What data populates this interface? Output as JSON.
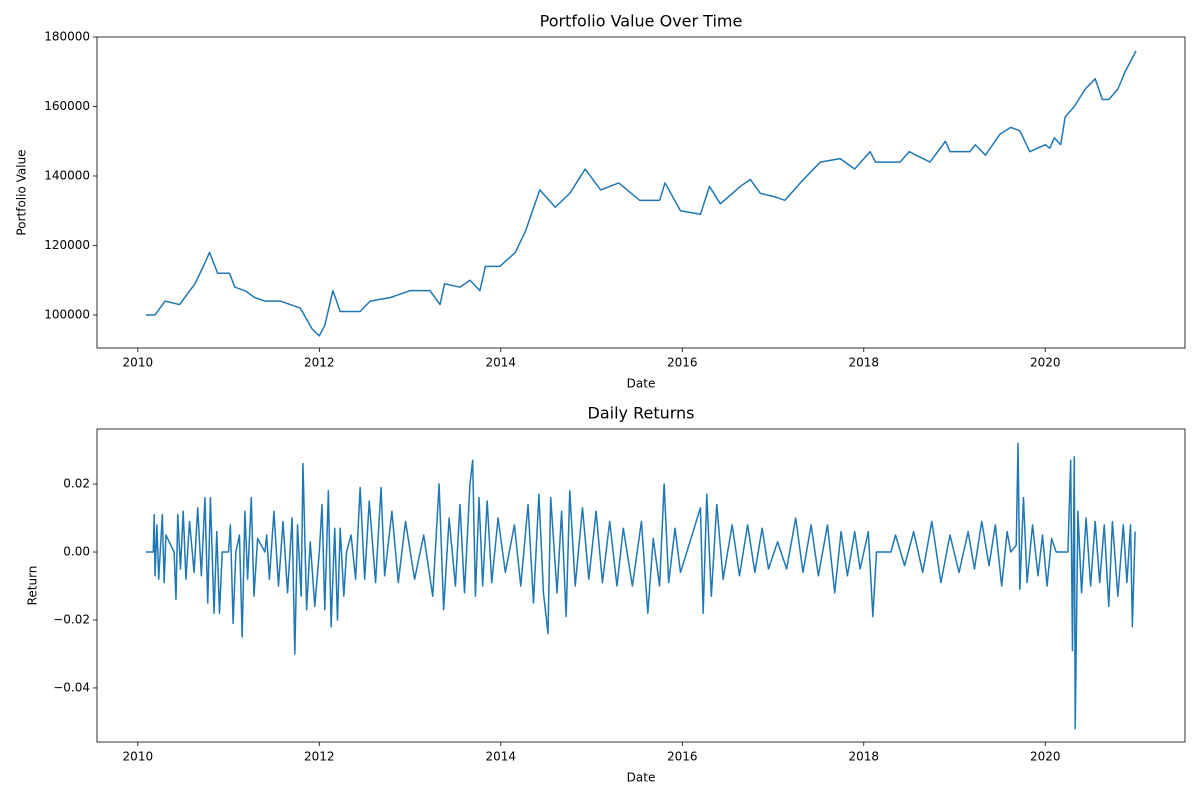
{
  "chart_data": [
    {
      "type": "line",
      "title": "Portfolio Value Over Time",
      "xlabel": "Date",
      "ylabel": "Portfolio Value",
      "xlim": [
        2009.55,
        2021.54
      ],
      "xticks": [
        2010,
        2012,
        2014,
        2016,
        2018,
        2020
      ],
      "ylim": [
        90500,
        180000
      ],
      "yticks": [
        100000,
        120000,
        140000,
        160000,
        180000
      ],
      "x": [
        2010.09,
        2010.19,
        2010.3,
        2010.46,
        2010.63,
        2010.74,
        2010.79,
        2010.88,
        2011.01,
        2011.07,
        2011.18,
        2011.29,
        2011.4,
        2011.57,
        2011.79,
        2011.92,
        2012.0,
        2012.06,
        2012.15,
        2012.23,
        2012.45,
        2012.56,
        2012.78,
        2013.0,
        2013.22,
        2013.33,
        2013.38,
        2013.55,
        2013.66,
        2013.77,
        2013.83,
        2013.99,
        2014.16,
        2014.27,
        2014.43,
        2014.6,
        2014.76,
        2014.93,
        2015.1,
        2015.3,
        2015.53,
        2015.75,
        2015.81,
        2015.98,
        2016.2,
        2016.3,
        2016.42,
        2016.64,
        2016.75,
        2016.86,
        2017.02,
        2017.13,
        2017.3,
        2017.52,
        2017.74,
        2017.9,
        2018.07,
        2018.13,
        2018.4,
        2018.5,
        2018.73,
        2018.9,
        2018.95,
        2019.17,
        2019.23,
        2019.34,
        2019.5,
        2019.62,
        2019.72,
        2019.83,
        2020.0,
        2020.05,
        2020.1,
        2020.17,
        2020.22,
        2020.32,
        2020.44,
        2020.55,
        2020.63,
        2020.7,
        2020.8,
        2020.88,
        2021.0
      ],
      "series": [
        {
          "name": "Portfolio",
          "color": "#1f77b4",
          "values": [
            100000,
            100000,
            104000,
            103000,
            109000,
            115000,
            118000,
            112000,
            112000,
            108000,
            107000,
            105000,
            104000,
            104000,
            102000,
            96000,
            94000,
            97000,
            107000,
            101000,
            101000,
            104000,
            105000,
            107000,
            107000,
            103000,
            109000,
            108000,
            110000,
            107000,
            114000,
            114000,
            118000,
            124000,
            136000,
            131000,
            135000,
            142000,
            136000,
            138000,
            133000,
            133000,
            138000,
            130000,
            129000,
            137000,
            132000,
            137000,
            139000,
            135000,
            134000,
            133000,
            138000,
            144000,
            145000,
            142000,
            147000,
            144000,
            144000,
            147000,
            144000,
            150000,
            147000,
            147000,
            149000,
            146000,
            152000,
            154000,
            153000,
            147000,
            149000,
            148000,
            151000,
            149000,
            157000,
            160000,
            165000,
            168000,
            162000,
            162000,
            165000,
            170000,
            176000
          ]
        }
      ]
    },
    {
      "type": "line",
      "title": "Daily Returns",
      "xlabel": "Date",
      "ylabel": "Return",
      "xlim": [
        2009.55,
        2021.54
      ],
      "xticks": [
        2010,
        2012,
        2014,
        2016,
        2018,
        2020
      ],
      "ylim": [
        -0.0559,
        0.0362
      ],
      "yticks": [
        {
          "value": -0.04,
          "label": "−0.04"
        },
        {
          "value": -0.02,
          "label": "−0.02"
        },
        {
          "value": 0,
          "label": "0.00"
        },
        0.02
      ],
      "x": [
        2010.09,
        2010.17,
        2010.18,
        2010.19,
        2010.21,
        2010.23,
        2010.27,
        2010.29,
        2010.31,
        2010.4,
        2010.42,
        2010.44,
        2010.47,
        2010.5,
        2010.53,
        2010.57,
        2010.62,
        2010.66,
        2010.7,
        2010.74,
        2010.77,
        2010.8,
        2010.84,
        2010.87,
        2010.9,
        2010.93,
        2011.0,
        2011.02,
        2011.05,
        2011.08,
        2011.12,
        2011.15,
        2011.18,
        2011.21,
        2011.25,
        2011.28,
        2011.32,
        2011.4,
        2011.42,
        2011.45,
        2011.5,
        2011.55,
        2011.6,
        2011.65,
        2011.7,
        2011.73,
        2011.76,
        2011.8,
        2011.82,
        2011.86,
        2011.9,
        2011.95,
        2012.0,
        2012.03,
        2012.06,
        2012.1,
        2012.13,
        2012.17,
        2012.2,
        2012.23,
        2012.27,
        2012.3,
        2012.35,
        2012.4,
        2012.45,
        2012.5,
        2012.55,
        2012.62,
        2012.68,
        2012.72,
        2012.8,
        2012.87,
        2012.95,
        2013.05,
        2013.15,
        2013.25,
        2013.32,
        2013.37,
        2013.43,
        2013.5,
        2013.55,
        2013.6,
        2013.66,
        2013.69,
        2013.72,
        2013.76,
        2013.8,
        2013.85,
        2013.9,
        2013.97,
        2014.05,
        2014.15,
        2014.22,
        2014.3,
        2014.36,
        2014.42,
        2014.47,
        2014.52,
        2014.55,
        2014.62,
        2014.67,
        2014.72,
        2014.76,
        2014.82,
        2014.9,
        2014.97,
        2015.05,
        2015.12,
        2015.2,
        2015.28,
        2015.35,
        2015.45,
        2015.55,
        2015.62,
        2015.68,
        2015.75,
        2015.8,
        2015.85,
        2015.92,
        2015.98,
        2016.05,
        2016.2,
        2016.23,
        2016.27,
        2016.32,
        2016.38,
        2016.45,
        2016.55,
        2016.63,
        2016.72,
        2016.8,
        2016.88,
        2016.95,
        2017.05,
        2017.15,
        2017.25,
        2017.33,
        2017.42,
        2017.5,
        2017.6,
        2017.68,
        2017.75,
        2017.82,
        2017.9,
        2017.96,
        2018.05,
        2018.1,
        2018.14,
        2018.3,
        2018.35,
        2018.45,
        2018.55,
        2018.65,
        2018.75,
        2018.85,
        2018.95,
        2019.05,
        2019.15,
        2019.22,
        2019.3,
        2019.38,
        2019.45,
        2019.52,
        2019.58,
        2019.62,
        2019.68,
        2019.7,
        2019.72,
        2019.76,
        2019.8,
        2019.86,
        2019.92,
        2019.97,
        2020.02,
        2020.07,
        2020.12,
        2020.25,
        2020.28,
        2020.3,
        2020.32,
        2020.33,
        2020.36,
        2020.4,
        2020.45,
        2020.5,
        2020.55,
        2020.6,
        2020.65,
        2020.7,
        2020.74,
        2020.8,
        2020.86,
        2020.9,
        2020.94,
        2020.96,
        2020.99
      ],
      "series": [
        {
          "name": "Return",
          "color": "#1f77b4",
          "values": [
            0,
            0,
            0.011,
            -0.007,
            0.008,
            -0.008,
            0.011,
            -0.009,
            0.005,
            0,
            -0.014,
            0.011,
            -0.005,
            0.012,
            -0.008,
            0.009,
            -0.006,
            0.013,
            -0.007,
            0.016,
            -0.015,
            0.016,
            -0.018,
            0.006,
            -0.018,
            0,
            0,
            0.008,
            -0.021,
            0,
            0.005,
            -0.025,
            0.012,
            -0.008,
            0.016,
            -0.013,
            0.004,
            0,
            0.005,
            -0.008,
            0.012,
            -0.01,
            0.009,
            -0.012,
            0.01,
            -0.03,
            0.008,
            -0.013,
            0.026,
            -0.017,
            0.003,
            -0.016,
            0,
            0.014,
            -0.017,
            0.018,
            -0.022,
            0.007,
            -0.02,
            0.007,
            -0.013,
            0,
            0.005,
            -0.008,
            0.019,
            -0.008,
            0.015,
            -0.009,
            0.019,
            -0.007,
            0.012,
            -0.009,
            0.009,
            -0.008,
            0.005,
            -0.013,
            0.02,
            -0.017,
            0.01,
            -0.01,
            0.014,
            -0.012,
            0.02,
            0.027,
            -0.013,
            0.016,
            -0.01,
            0.015,
            -0.009,
            0.01,
            -0.006,
            0.008,
            -0.01,
            0.014,
            -0.015,
            0.017,
            -0.012,
            -0.024,
            0.016,
            -0.012,
            0.012,
            -0.019,
            0.018,
            -0.01,
            0.013,
            -0.008,
            0.012,
            -0.009,
            0.009,
            -0.01,
            0.007,
            -0.01,
            0.009,
            -0.018,
            0.004,
            -0.01,
            0.02,
            -0.009,
            0.007,
            -0.006,
            0,
            0.013,
            -0.018,
            0.017,
            -0.013,
            0.014,
            -0.008,
            0.008,
            -0.007,
            0.008,
            -0.006,
            0.007,
            -0.005,
            0.003,
            -0.005,
            0.01,
            -0.006,
            0.008,
            -0.007,
            0.008,
            -0.012,
            0.006,
            -0.007,
            0.006,
            -0.005,
            0.006,
            -0.019,
            0,
            0,
            0.005,
            -0.004,
            0.006,
            -0.006,
            0.009,
            -0.009,
            0.005,
            -0.006,
            0.006,
            -0.005,
            0.009,
            -0.004,
            0.008,
            -0.01,
            0.006,
            0,
            0.002,
            0.032,
            -0.011,
            0.016,
            -0.009,
            0.008,
            -0.007,
            0.005,
            -0.01,
            0.004,
            0,
            0,
            0.027,
            -0.029,
            0.028,
            -0.052,
            0.012,
            -0.012,
            0.01,
            -0.01,
            0.009,
            -0.009,
            0.008,
            -0.016,
            0.009,
            -0.013,
            0.008,
            -0.009,
            0.008,
            -0.022,
            0.006
          ]
        }
      ]
    }
  ]
}
